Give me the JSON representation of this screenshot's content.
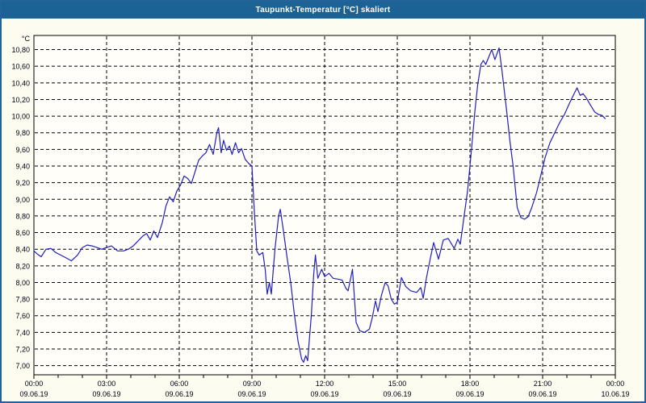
{
  "window": {
    "title": "Taupunkt-Temperatur [°C] skaliert"
  },
  "colors": {
    "titlebar_bg": "#1d6295",
    "titlebar_text": "#ffffff",
    "window_border": "#246397",
    "window_bg": "#fcfcf0"
  },
  "chart_data": {
    "type": "line",
    "title": "Taupunkt-Temperatur [°C] skaliert",
    "y_unit_label": "°C",
    "grid": "dashed",
    "legend": "none",
    "colors": {
      "line": "#2020c0",
      "grid": "#000000",
      "axis": "#000000",
      "plot_bg": "#fffef8",
      "label_text": "#000010"
    },
    "x_axis": {
      "range_hours": [
        0,
        24
      ],
      "major_tick_hours": 3,
      "minor_tick_hours": 1,
      "ticks": [
        {
          "hour": 0,
          "time": "00:00",
          "date": "09.06.19"
        },
        {
          "hour": 3,
          "time": "03:00",
          "date": "09.06.19"
        },
        {
          "hour": 6,
          "time": "06:00",
          "date": "09.06.19"
        },
        {
          "hour": 9,
          "time": "09:00",
          "date": "09.06.19"
        },
        {
          "hour": 12,
          "time": "12:00",
          "date": "09.06.19"
        },
        {
          "hour": 15,
          "time": "15:00",
          "date": "09.06.19"
        },
        {
          "hour": 18,
          "time": "18:00",
          "date": "09.06.19"
        },
        {
          "hour": 21,
          "time": "21:00",
          "date": "09.06.19"
        },
        {
          "hour": 24,
          "time": "00:00",
          "date": "10.06.19"
        }
      ]
    },
    "y_axis": {
      "range": [
        6.89,
        10.97
      ],
      "tick_step": 0.2,
      "ticks": [
        {
          "value": 10.8,
          "label": "10,80"
        },
        {
          "value": 10.6,
          "label": "10,60"
        },
        {
          "value": 10.4,
          "label": "10,40"
        },
        {
          "value": 10.2,
          "label": "10,20"
        },
        {
          "value": 10.0,
          "label": "10,00"
        },
        {
          "value": 9.8,
          "label": "9,80"
        },
        {
          "value": 9.6,
          "label": "9,60"
        },
        {
          "value": 9.4,
          "label": "9,40"
        },
        {
          "value": 9.2,
          "label": "9,20"
        },
        {
          "value": 9.0,
          "label": "9,00"
        },
        {
          "value": 8.8,
          "label": "8,80"
        },
        {
          "value": 8.6,
          "label": "8,60"
        },
        {
          "value": 8.4,
          "label": "8,40"
        },
        {
          "value": 8.2,
          "label": "8,20"
        },
        {
          "value": 8.0,
          "label": "8,00"
        },
        {
          "value": 7.8,
          "label": "7,80"
        },
        {
          "value": 7.6,
          "label": "7,60"
        },
        {
          "value": 7.4,
          "label": "7,40"
        },
        {
          "value": 7.2,
          "label": "7,20"
        },
        {
          "value": 7.0,
          "label": "7,00"
        }
      ]
    },
    "series": [
      {
        "name": "Taupunkt-Temperatur",
        "color": "#2020c0",
        "points": [
          [
            0.0,
            8.38
          ],
          [
            0.15,
            8.34
          ],
          [
            0.3,
            8.31
          ],
          [
            0.5,
            8.4
          ],
          [
            0.7,
            8.41
          ],
          [
            0.9,
            8.36
          ],
          [
            1.1,
            8.33
          ],
          [
            1.3,
            8.3
          ],
          [
            1.55,
            8.26
          ],
          [
            1.8,
            8.33
          ],
          [
            2.0,
            8.42
          ],
          [
            2.2,
            8.45
          ],
          [
            2.4,
            8.44
          ],
          [
            2.6,
            8.42
          ],
          [
            2.8,
            8.4
          ],
          [
            3.0,
            8.42
          ],
          [
            3.2,
            8.44
          ],
          [
            3.45,
            8.38
          ],
          [
            3.7,
            8.38
          ],
          [
            3.9,
            8.4
          ],
          [
            4.1,
            8.44
          ],
          [
            4.3,
            8.5
          ],
          [
            4.5,
            8.56
          ],
          [
            4.65,
            8.59
          ],
          [
            4.8,
            8.51
          ],
          [
            4.95,
            8.62
          ],
          [
            5.1,
            8.54
          ],
          [
            5.3,
            8.72
          ],
          [
            5.45,
            8.92
          ],
          [
            5.6,
            9.03
          ],
          [
            5.75,
            8.97
          ],
          [
            5.9,
            9.1
          ],
          [
            6.05,
            9.17
          ],
          [
            6.2,
            9.28
          ],
          [
            6.35,
            9.25
          ],
          [
            6.5,
            9.19
          ],
          [
            6.65,
            9.33
          ],
          [
            6.8,
            9.47
          ],
          [
            6.95,
            9.52
          ],
          [
            7.1,
            9.56
          ],
          [
            7.25,
            9.66
          ],
          [
            7.4,
            9.54
          ],
          [
            7.55,
            9.8
          ],
          [
            7.62,
            9.86
          ],
          [
            7.73,
            9.56
          ],
          [
            7.83,
            9.71
          ],
          [
            7.95,
            9.59
          ],
          [
            8.07,
            9.64
          ],
          [
            8.18,
            9.54
          ],
          [
            8.32,
            9.68
          ],
          [
            8.45,
            9.56
          ],
          [
            8.57,
            9.61
          ],
          [
            8.72,
            9.48
          ],
          [
            8.87,
            9.43
          ],
          [
            9.0,
            9.4
          ],
          [
            9.1,
            8.85
          ],
          [
            9.2,
            8.38
          ],
          [
            9.3,
            8.33
          ],
          [
            9.45,
            8.36
          ],
          [
            9.55,
            8.15
          ],
          [
            9.63,
            7.86
          ],
          [
            9.72,
            8.0
          ],
          [
            9.8,
            7.86
          ],
          [
            9.95,
            8.4
          ],
          [
            10.1,
            8.8
          ],
          [
            10.17,
            8.88
          ],
          [
            10.3,
            8.62
          ],
          [
            10.45,
            8.3
          ],
          [
            10.6,
            8.0
          ],
          [
            10.75,
            7.62
          ],
          [
            10.9,
            7.3
          ],
          [
            11.05,
            7.08
          ],
          [
            11.13,
            7.04
          ],
          [
            11.22,
            7.12
          ],
          [
            11.3,
            7.06
          ],
          [
            11.45,
            7.6
          ],
          [
            11.55,
            8.1
          ],
          [
            11.62,
            8.33
          ],
          [
            11.72,
            8.05
          ],
          [
            11.88,
            8.16
          ],
          [
            12.0,
            8.07
          ],
          [
            12.18,
            8.11
          ],
          [
            12.35,
            8.05
          ],
          [
            12.55,
            8.04
          ],
          [
            12.72,
            8.03
          ],
          [
            12.88,
            7.93
          ],
          [
            12.97,
            7.9
          ],
          [
            13.15,
            8.16
          ],
          [
            13.3,
            7.52
          ],
          [
            13.45,
            7.42
          ],
          [
            13.65,
            7.4
          ],
          [
            13.85,
            7.44
          ],
          [
            13.97,
            7.58
          ],
          [
            14.1,
            7.78
          ],
          [
            14.2,
            7.65
          ],
          [
            14.35,
            7.85
          ],
          [
            14.5,
            8.0
          ],
          [
            14.62,
            7.96
          ],
          [
            14.75,
            7.8
          ],
          [
            14.88,
            7.74
          ],
          [
            15.0,
            7.76
          ],
          [
            15.17,
            8.06
          ],
          [
            15.35,
            7.95
          ],
          [
            15.55,
            7.9
          ],
          [
            15.8,
            7.88
          ],
          [
            15.97,
            7.94
          ],
          [
            16.07,
            7.81
          ],
          [
            16.2,
            8.05
          ],
          [
            16.35,
            8.27
          ],
          [
            16.5,
            8.48
          ],
          [
            16.7,
            8.28
          ],
          [
            16.9,
            8.51
          ],
          [
            17.1,
            8.53
          ],
          [
            17.35,
            8.41
          ],
          [
            17.5,
            8.52
          ],
          [
            17.6,
            8.46
          ],
          [
            17.75,
            8.78
          ],
          [
            17.9,
            9.1
          ],
          [
            18.0,
            9.4
          ],
          [
            18.1,
            9.72
          ],
          [
            18.2,
            10.05
          ],
          [
            18.32,
            10.38
          ],
          [
            18.45,
            10.62
          ],
          [
            18.55,
            10.67
          ],
          [
            18.65,
            10.62
          ],
          [
            18.9,
            10.8
          ],
          [
            19.03,
            10.68
          ],
          [
            19.2,
            10.82
          ],
          [
            19.32,
            10.55
          ],
          [
            19.5,
            10.1
          ],
          [
            19.65,
            9.7
          ],
          [
            19.78,
            9.4
          ],
          [
            19.95,
            8.9
          ],
          [
            20.1,
            8.78
          ],
          [
            20.25,
            8.76
          ],
          [
            20.4,
            8.79
          ],
          [
            20.55,
            8.9
          ],
          [
            20.75,
            9.08
          ],
          [
            20.95,
            9.32
          ],
          [
            21.1,
            9.5
          ],
          [
            21.3,
            9.68
          ],
          [
            21.5,
            9.8
          ],
          [
            21.7,
            9.92
          ],
          [
            21.9,
            10.02
          ],
          [
            22.1,
            10.15
          ],
          [
            22.3,
            10.27
          ],
          [
            22.42,
            10.34
          ],
          [
            22.55,
            10.25
          ],
          [
            22.67,
            10.27
          ],
          [
            22.82,
            10.21
          ],
          [
            23.0,
            10.12
          ],
          [
            23.15,
            10.05
          ],
          [
            23.3,
            10.02
          ],
          [
            23.45,
            10.01
          ],
          [
            23.58,
            9.97
          ]
        ]
      }
    ]
  }
}
